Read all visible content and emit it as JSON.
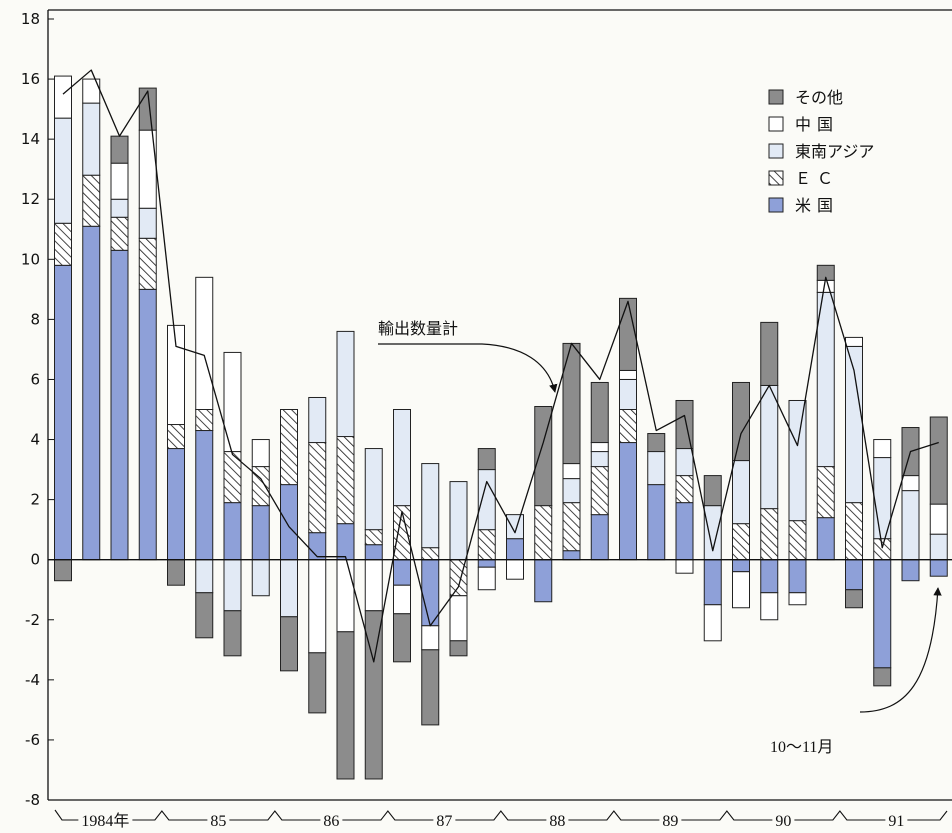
{
  "chart_data": {
    "type": "bar",
    "stacked": true,
    "ylim": [
      -8,
      18
    ],
    "y_ticks": [
      18,
      16,
      14,
      12,
      10,
      8,
      6,
      4,
      2,
      0,
      -2,
      -4,
      -6,
      -8
    ],
    "x_group_labels": [
      "1984年",
      "85",
      "86",
      "87",
      "88",
      "89",
      "90",
      "91"
    ],
    "grid": false,
    "legend_position": "top-right",
    "series": [
      {
        "name": "米国",
        "color": "#8ea0d8",
        "values": [
          9.8,
          11.1,
          10.3,
          9.0,
          3.7,
          4.3,
          1.9,
          1.8,
          2.5,
          0.9,
          1.2,
          0.5,
          -0.85,
          -2.2,
          0,
          -0.25,
          0.7,
          -1.4,
          0.3,
          1.5,
          3.9,
          2.5,
          1.9,
          -1.5,
          -0.4,
          -1.1,
          -1.1,
          1.4,
          -1.0,
          -3.6,
          -0.7,
          -0.55
        ]
      },
      {
        "name": "ＥＣ",
        "pattern": "hatch",
        "values": [
          1.4,
          1.7,
          1.1,
          1.7,
          0.8,
          0.7,
          1.7,
          1.3,
          2.5,
          3.0,
          2.9,
          0.5,
          1.8,
          0.4,
          -1.2,
          1.0,
          0,
          1.8,
          1.6,
          1.6,
          1.1,
          0,
          0.9,
          0,
          1.2,
          1.7,
          1.3,
          1.7,
          1.9,
          0.7,
          0,
          0
        ]
      },
      {
        "name": "東南アジア",
        "color": "#e2eaf5",
        "values": [
          3.5,
          2.4,
          0.6,
          1.0,
          0,
          -1.1,
          -1.7,
          -1.2,
          -1.9,
          1.5,
          3.5,
          2.7,
          3.2,
          2.8,
          2.6,
          2.0,
          0.8,
          0,
          0.8,
          0.5,
          1.0,
          1.1,
          0.9,
          1.8,
          2.1,
          4.1,
          4.0,
          5.8,
          5.2,
          2.7,
          2.3,
          0.85
        ]
      },
      {
        "name": "中国",
        "color": "#ffffff",
        "values": [
          1.4,
          0.8,
          1.2,
          2.6,
          3.3,
          4.4,
          3.3,
          0.9,
          0,
          -3.1,
          -2.4,
          -1.7,
          -0.95,
          -0.8,
          -1.5,
          -0.75,
          -0.65,
          0,
          0.5,
          0.3,
          0.3,
          0,
          -0.45,
          -1.2,
          -1.2,
          -0.9,
          -0.4,
          0.4,
          0.3,
          0.6,
          0.5,
          1.0
        ]
      },
      {
        "name": "その他",
        "color": "#8c8c8c",
        "values": [
          -0.7,
          0,
          0.9,
          1.4,
          -0.85,
          -1.5,
          -1.5,
          0,
          -1.8,
          -2.0,
          -4.9,
          -5.6,
          -1.6,
          -2.5,
          -0.5,
          0.7,
          0,
          3.3,
          4.0,
          2.0,
          2.4,
          0.6,
          1.6,
          1.0,
          2.6,
          2.1,
          0,
          0.5,
          -0.6,
          -0.6,
          1.6,
          2.9
        ]
      }
    ],
    "line": {
      "name": "輸出数量計",
      "color": "#111111",
      "values": [
        15.5,
        16.3,
        14.1,
        15.6,
        7.1,
        6.8,
        3.5,
        2.7,
        1.1,
        0.1,
        0.1,
        -3.4,
        1.6,
        -2.2,
        -0.9,
        2.6,
        0.9,
        3.9,
        7.2,
        6.0,
        8.6,
        4.3,
        4.8,
        0.3,
        4.2,
        5.8,
        3.8,
        9.4,
        6.3,
        0.4,
        3.6,
        3.9
      ]
    },
    "last_bar_note": "10～11月"
  }
}
